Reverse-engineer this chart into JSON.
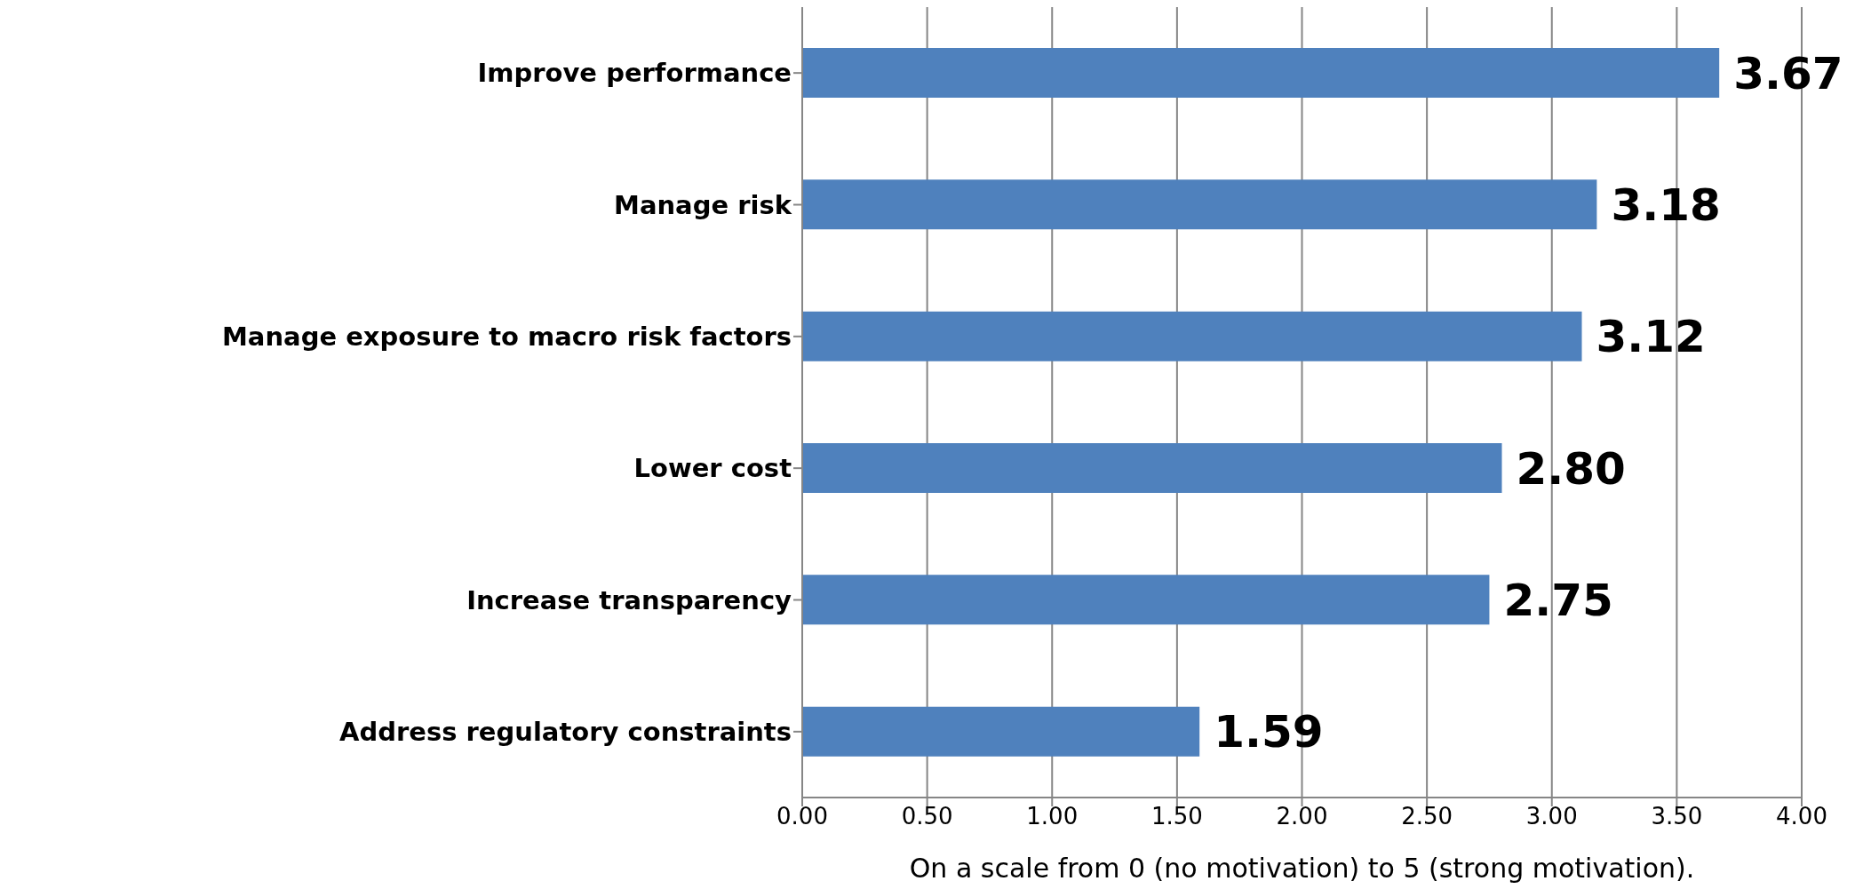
{
  "chart_data": {
    "type": "bar",
    "orientation": "horizontal",
    "xlabel": "On a scale from 0 (no motivation) to 5 (strong motivation).",
    "categories": [
      "Improve performance",
      "Manage risk",
      "Manage exposure to macro risk factors",
      "Lower cost",
      "Increase transparency",
      "Address regulatory constraints"
    ],
    "values": [
      3.67,
      3.18,
      3.12,
      2.8,
      2.75,
      1.59
    ],
    "value_labels": [
      "3.67",
      "3.18",
      "3.12",
      "2.80",
      "2.75",
      "1.59"
    ],
    "color": "#4f81bd",
    "xlim": [
      0,
      4
    ],
    "xticks": [
      {
        "value": 0,
        "label": "0.00"
      },
      {
        "value": 0.5,
        "label": "0.50"
      },
      {
        "value": 1,
        "label": "1.00"
      },
      {
        "value": 1.5,
        "label": "1.50"
      },
      {
        "value": 2,
        "label": "2.00"
      },
      {
        "value": 2.5,
        "label": "2.50"
      },
      {
        "value": 3,
        "label": "3.00"
      },
      {
        "value": 3.5,
        "label": "3.50"
      },
      {
        "value": 4,
        "label": "4.00"
      }
    ],
    "grid": "x"
  }
}
